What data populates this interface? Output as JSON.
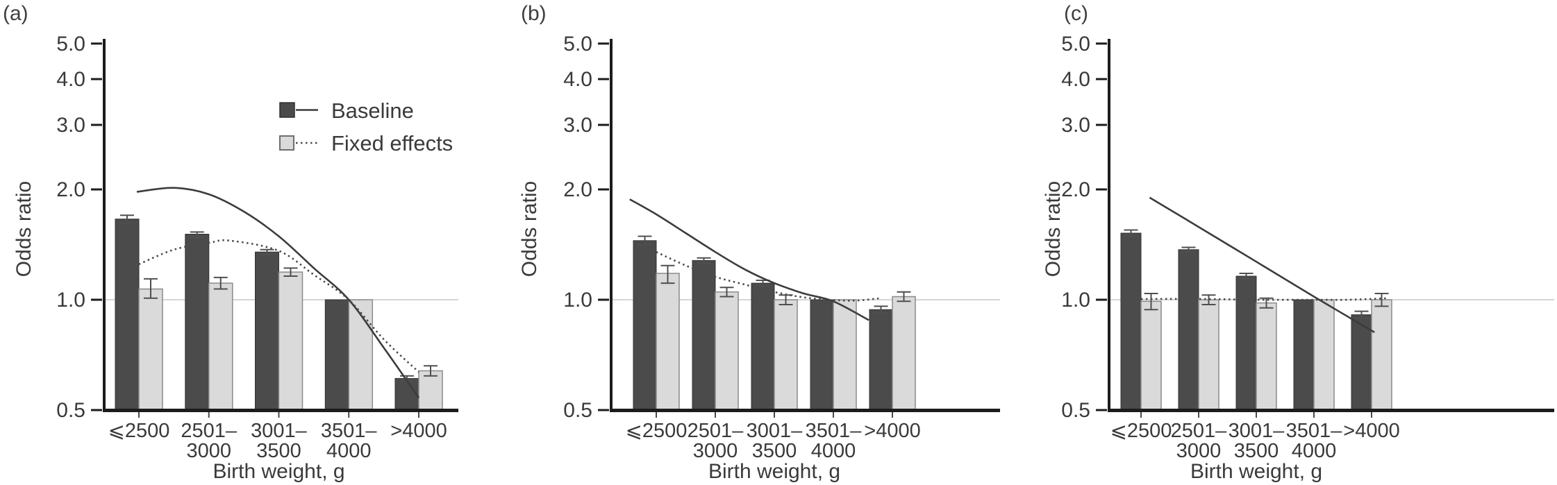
{
  "colors": {
    "bar_dark": "#4b4b4b",
    "bar_dark_edge": "#333333",
    "bar_light": "#dadada",
    "bar_light_edge": "#8a8a8a",
    "axis": "#1c1c1c",
    "refline": "#c7c7c7",
    "curve_solid": "#3c3c3c",
    "curve_dotted": "#4a4a4a",
    "error_bar": "#4f4f4f",
    "text": "#3a3a3a"
  },
  "chart_data": [
    {
      "type": "bar",
      "label": "(a)",
      "ylabel": "Odds ratio",
      "xlabel": "Birth weight, g",
      "yscale": "log",
      "ylim": [
        0.5,
        5.3
      ],
      "refline": 1.0,
      "grid": false,
      "yticks": [
        {
          "v": 5.0,
          "label": "5.0"
        },
        {
          "v": 4.0,
          "label": "4.0"
        },
        {
          "v": 3.0,
          "label": "3.0"
        },
        {
          "v": 2.0,
          "label": "2.0"
        },
        {
          "v": 1.0,
          "label": "1.0"
        },
        {
          "v": 0.5,
          "label": "0.5"
        }
      ],
      "categories": [
        [
          "⩽2500"
        ],
        [
          "2501–",
          "3000"
        ],
        [
          "3001–",
          "3500"
        ],
        [
          "3501–",
          "4000"
        ],
        [
          ">4000"
        ]
      ],
      "bars": [
        {
          "name": "Baseline",
          "values": [
            1.66,
            1.51,
            1.35,
            1.0,
            0.61
          ],
          "ci_low": [
            1.62,
            1.48,
            1.33,
            null,
            0.6
          ],
          "ci_high": [
            1.7,
            1.53,
            1.37,
            null,
            0.62
          ]
        },
        {
          "name": "Fixed effects",
          "values": [
            1.07,
            1.11,
            1.19,
            1.0,
            0.64
          ],
          "ci_low": [
            1.01,
            1.07,
            1.16,
            null,
            0.62
          ],
          "ci_high": [
            1.14,
            1.15,
            1.22,
            null,
            0.66
          ]
        }
      ],
      "trends": [
        {
          "name": "Baseline",
          "style": "solid",
          "points": [
            [
              0.97,
              1.97
            ],
            [
              1.5,
              2.02
            ],
            [
              2,
              1.94
            ],
            [
              2.5,
              1.74
            ],
            [
              3,
              1.49
            ],
            [
              3.5,
              1.22
            ],
            [
              4,
              1.0
            ],
            [
              4.5,
              0.74
            ],
            [
              5,
              0.54
            ]
          ]
        },
        {
          "name": "Fixed effects",
          "style": "dotted",
          "points": [
            [
              1,
              1.25
            ],
            [
              1.5,
              1.37
            ],
            [
              2,
              1.43
            ],
            [
              2.3,
              1.45
            ],
            [
              3,
              1.36
            ],
            [
              3.5,
              1.17
            ],
            [
              4,
              1.0
            ],
            [
              4.5,
              0.78
            ],
            [
              5,
              0.635
            ]
          ]
        }
      ],
      "legend": {
        "items": [
          "Baseline",
          "Fixed effects"
        ]
      }
    },
    {
      "type": "bar",
      "label": "(b)",
      "ylabel": "Odds ratio",
      "xlabel": "Birth weight, g",
      "yscale": "log",
      "ylim": [
        0.5,
        5.3
      ],
      "refline": 1.0,
      "grid": false,
      "yticks": [
        {
          "v": 5.0,
          "label": "5.0"
        },
        {
          "v": 4.0,
          "label": "4.0"
        },
        {
          "v": 3.0,
          "label": "3.0"
        },
        {
          "v": 2.0,
          "label": "2.0"
        },
        {
          "v": 1.0,
          "label": "1.0"
        },
        {
          "v": 0.5,
          "label": "0.5"
        }
      ],
      "categories": [
        [
          "⩽2500"
        ],
        [
          "2501–",
          "3000"
        ],
        [
          "3001–",
          "3500"
        ],
        [
          "3501–",
          "4000"
        ],
        [
          ">4000"
        ]
      ],
      "bars": [
        {
          "name": "Baseline",
          "values": [
            1.45,
            1.28,
            1.11,
            1.0,
            0.94
          ],
          "ci_low": [
            1.41,
            1.26,
            1.09,
            null,
            0.92
          ],
          "ci_high": [
            1.49,
            1.3,
            1.13,
            null,
            0.96
          ]
        },
        {
          "name": "Fixed effects",
          "values": [
            1.18,
            1.05,
            1.0,
            1.0,
            1.02
          ],
          "ci_low": [
            1.11,
            1.02,
            0.97,
            null,
            0.99
          ],
          "ci_high": [
            1.24,
            1.08,
            1.03,
            null,
            1.05
          ]
        }
      ],
      "trends": [
        {
          "name": "Baseline",
          "style": "solid",
          "points": [
            [
              0.55,
              1.88
            ],
            [
              1,
              1.71
            ],
            [
              1.5,
              1.52
            ],
            [
              2,
              1.35
            ],
            [
              2.5,
              1.21
            ],
            [
              3,
              1.11
            ],
            [
              3.5,
              1.04
            ],
            [
              4,
              0.99
            ],
            [
              4.6,
              0.88
            ]
          ]
        },
        {
          "name": "Fixed effects",
          "style": "dotted",
          "points": [
            [
              1,
              1.35
            ],
            [
              1.5,
              1.24
            ],
            [
              2,
              1.155
            ],
            [
              2.5,
              1.1
            ],
            [
              3,
              1.05
            ],
            [
              3.5,
              1.015
            ],
            [
              4,
              0.998
            ],
            [
              4.4,
              0.995
            ],
            [
              4.8,
              1.01
            ]
          ]
        }
      ],
      "legend": null
    },
    {
      "type": "bar",
      "label": "(c)",
      "ylabel": "Odds ratio",
      "xlabel": "Birth weight, g",
      "yscale": "log",
      "ylim": [
        0.5,
        5.3
      ],
      "refline": 1.0,
      "grid": false,
      "yticks": [
        {
          "v": 5.0,
          "label": "5.0"
        },
        {
          "v": 4.0,
          "label": "4.0"
        },
        {
          "v": 3.0,
          "label": "3.0"
        },
        {
          "v": 2.0,
          "label": "2.0"
        },
        {
          "v": 1.0,
          "label": "1.0"
        },
        {
          "v": 0.5,
          "label": "0.5"
        }
      ],
      "categories": [
        [
          "⩽2500"
        ],
        [
          "2501–",
          "3000"
        ],
        [
          "3001–",
          "3500"
        ],
        [
          "3501–",
          "4000"
        ],
        [
          ">4000"
        ]
      ],
      "bars": [
        {
          "name": "Baseline",
          "values": [
            1.52,
            1.37,
            1.16,
            1.0,
            0.91
          ],
          "ci_low": [
            1.49,
            1.35,
            1.14,
            null,
            0.89
          ],
          "ci_high": [
            1.55,
            1.39,
            1.18,
            null,
            0.93
          ]
        },
        {
          "name": "Fixed effects",
          "values": [
            0.99,
            1.0,
            0.98,
            1.0,
            1.0
          ],
          "ci_low": [
            0.94,
            0.97,
            0.95,
            null,
            0.96
          ],
          "ci_high": [
            1.04,
            1.03,
            1.01,
            null,
            1.04
          ]
        }
      ],
      "trends": [
        {
          "name": "Baseline",
          "style": "solid",
          "points": [
            [
              1.15,
              1.9
            ],
            [
              2,
              1.58
            ],
            [
              3,
              1.27
            ],
            [
              4,
              1.02
            ],
            [
              5.05,
              0.815
            ]
          ]
        },
        {
          "name": "Fixed effects",
          "style": "dotted",
          "points": [
            [
              1,
              1.005
            ],
            [
              2,
              1.005
            ],
            [
              3,
              1.0
            ],
            [
              4,
              1.0
            ],
            [
              4.6,
              1.0
            ],
            [
              5.3,
              1.01
            ]
          ]
        }
      ],
      "legend": null
    }
  ]
}
